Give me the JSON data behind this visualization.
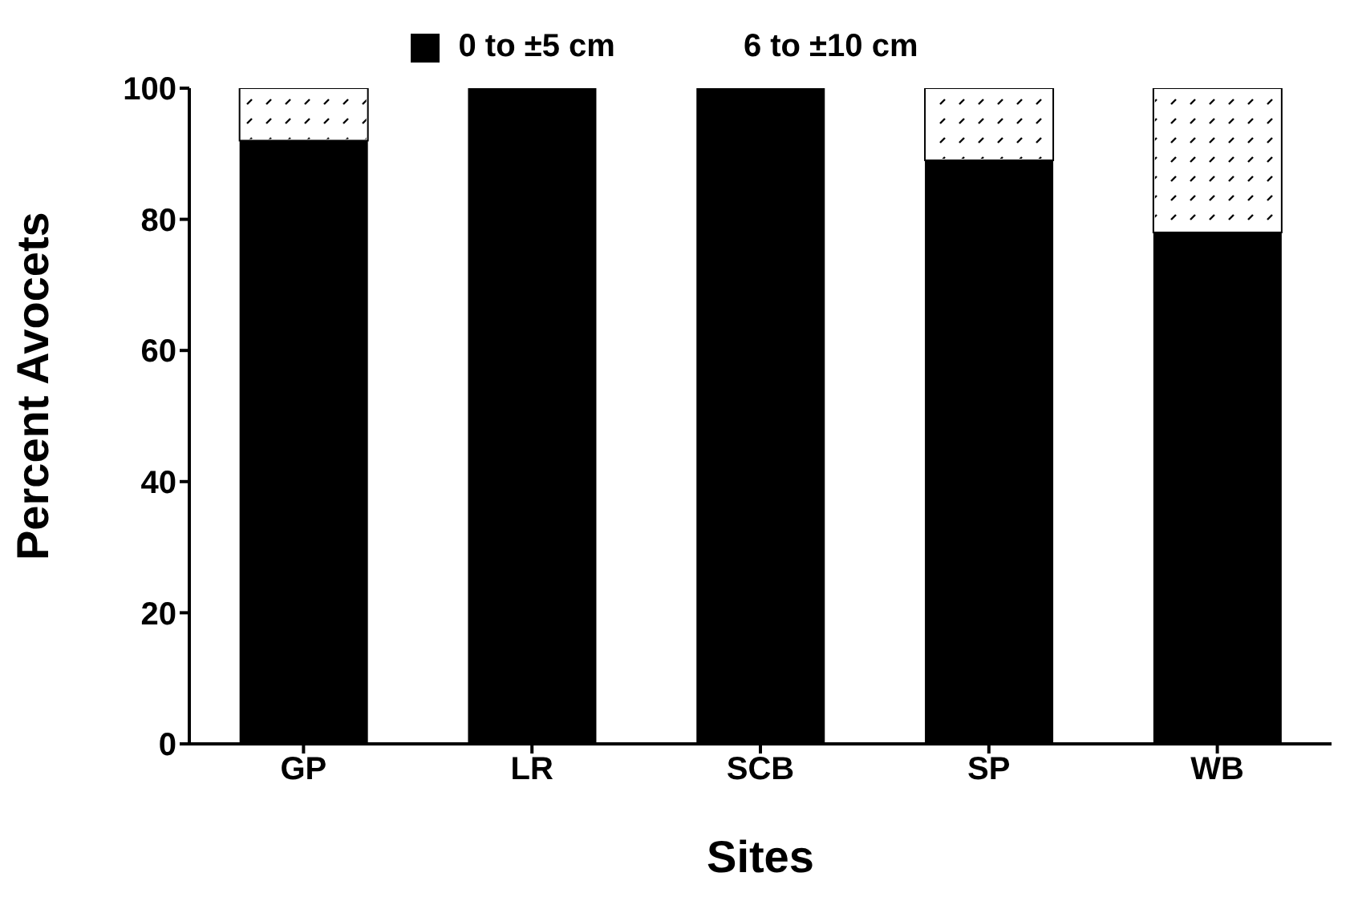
{
  "chart_data": {
    "type": "bar",
    "stacked": true,
    "xlabel": "Sites",
    "ylabel": "Percent Avocets",
    "categories": [
      "GP",
      "LR",
      "SCB",
      "SP",
      "WB"
    ],
    "series": [
      {
        "name": "0 to ±5 cm",
        "color": "#000000",
        "values": [
          92,
          100,
          100,
          89,
          78
        ]
      },
      {
        "name": "6 to ±10 cm",
        "color": "#ffffff",
        "values": [
          8,
          0,
          0,
          11,
          22
        ]
      }
    ],
    "ylim": [
      0,
      100
    ],
    "yticks": [
      0,
      20,
      40,
      60,
      80,
      100
    ],
    "grid": false,
    "legend": "top"
  }
}
